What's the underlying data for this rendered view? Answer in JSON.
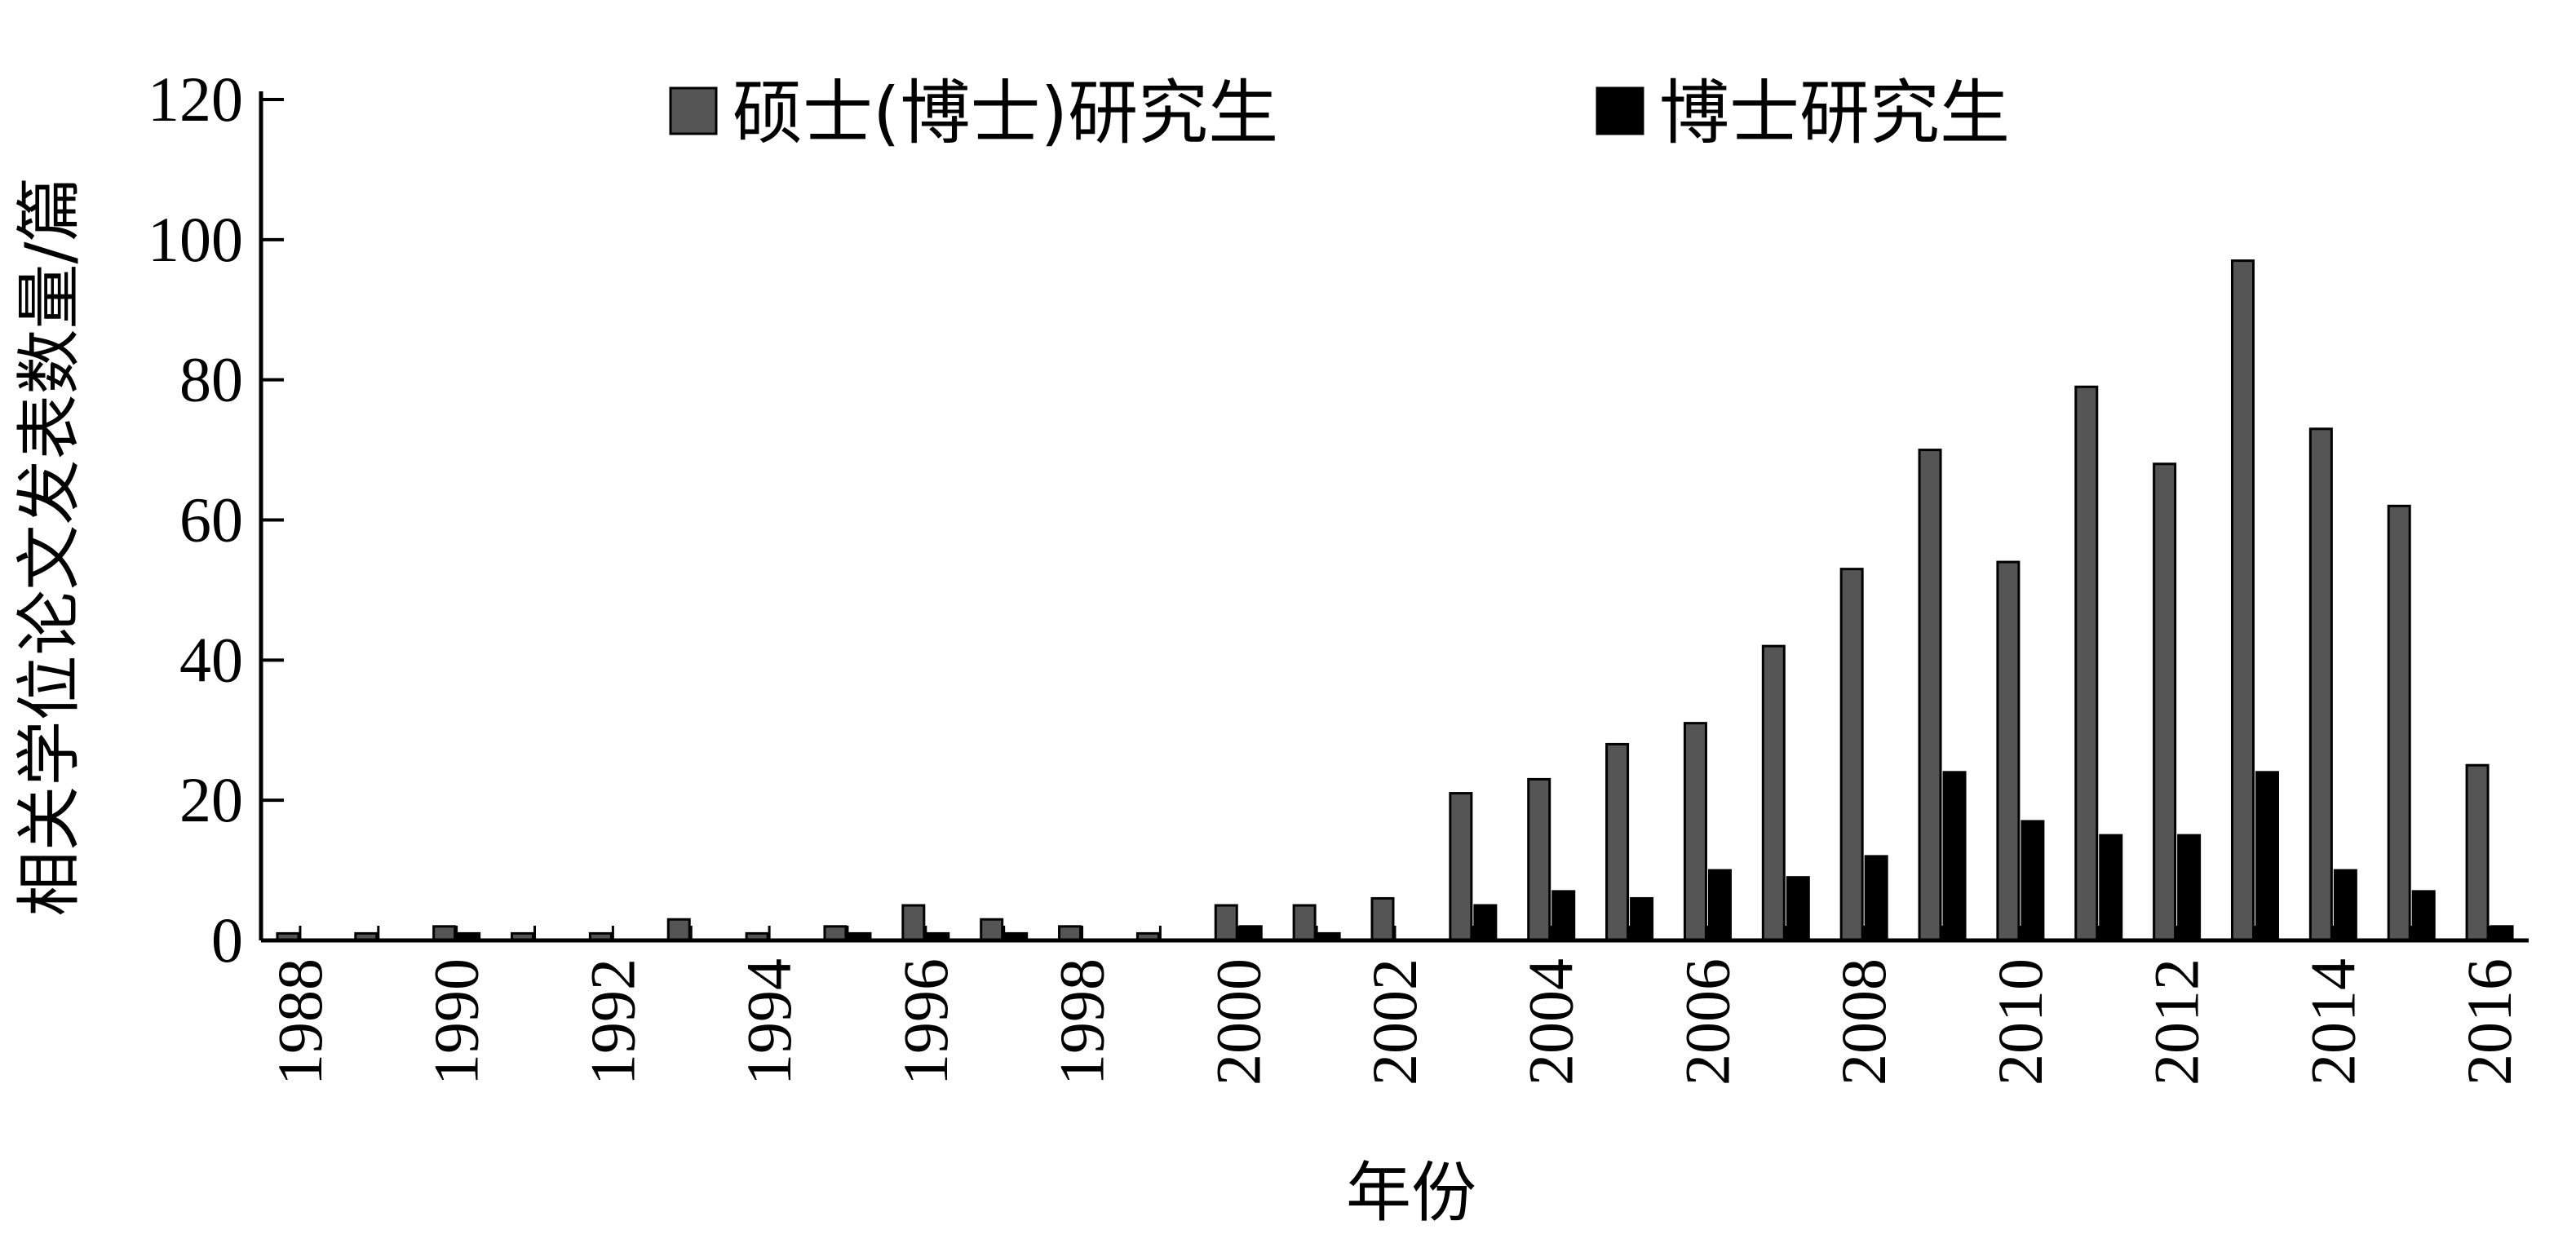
{
  "chart_data": {
    "type": "bar",
    "title": "",
    "xlabel": "年份",
    "ylabel": "相关学位论文发表数量/篇",
    "ylim": [
      0,
      120
    ],
    "yticks": [
      0,
      20,
      40,
      60,
      80,
      100,
      120
    ],
    "grid": false,
    "legend_position": "top",
    "categories": [
      "1988",
      "1989",
      "1990",
      "1991",
      "1992",
      "1993",
      "1994",
      "1995",
      "1996",
      "1997",
      "1998",
      "1999",
      "2000",
      "2001",
      "2002",
      "2003",
      "2004",
      "2005",
      "2006",
      "2007",
      "2008",
      "2009",
      "2010",
      "2011",
      "2012",
      "2013",
      "2014",
      "2015",
      "2016"
    ],
    "xtick_labels": [
      "1988",
      "1990",
      "1992",
      "1994",
      "1996",
      "1998",
      "2000",
      "2002",
      "2004",
      "2006",
      "2008",
      "2010",
      "2012",
      "2014",
      "2016"
    ],
    "series": [
      {
        "name": "硕士(博士)研究生",
        "color": "#555555",
        "values": [
          1,
          1,
          2,
          1,
          1,
          3,
          1,
          2,
          5,
          3,
          2,
          1,
          5,
          5,
          6,
          21,
          23,
          28,
          31,
          42,
          53,
          70,
          54,
          79,
          68,
          97,
          73,
          62,
          25
        ]
      },
      {
        "name": "博士研究生",
        "color": "#000000",
        "values": [
          0,
          0,
          1,
          0,
          0,
          0,
          0,
          1,
          1,
          1,
          0,
          0,
          2,
          1,
          0,
          5,
          7,
          6,
          10,
          9,
          12,
          24,
          17,
          15,
          15,
          24,
          10,
          7,
          2
        ]
      }
    ]
  }
}
